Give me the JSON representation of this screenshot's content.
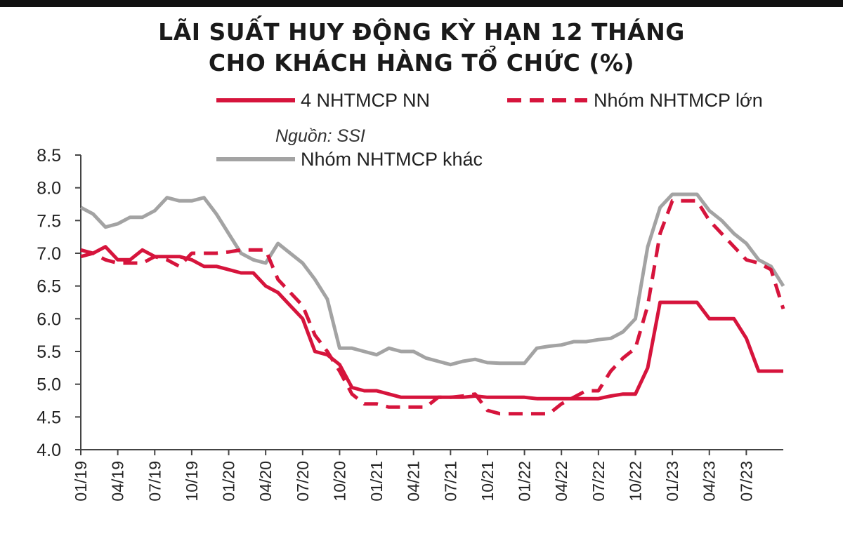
{
  "title_line1": "LÃI SUẤT HUY ĐỘNG KỲ HẠN 12 THÁNG",
  "title_line2": "CHO KHÁCH HÀNG TỔ CHỨC (%)",
  "source": "Nguồn: SSI",
  "colors": {
    "red": "#d6143c",
    "gray": "#a3a3a3",
    "axis": "#444444"
  },
  "chart_data": {
    "type": "line",
    "title": "LÃI SUẤT HUY ĐỘNG KỲ HẠN 12 THÁNG CHO KHÁCH HÀNG TỔ CHỨC (%)",
    "x_unit": "month",
    "x_start": "01/19",
    "x_end": "10/23",
    "xticks": [
      "01/19",
      "04/19",
      "07/19",
      "10/19",
      "01/20",
      "04/20",
      "07/20",
      "10/20",
      "01/21",
      "04/21",
      "07/21",
      "10/21",
      "01/22",
      "04/22",
      "07/22",
      "10/22",
      "01/23",
      "04/23",
      "07/23"
    ],
    "ylim": [
      4.0,
      8.5
    ],
    "yticks": [
      "8.5",
      "8.0",
      "7.5",
      "7.0",
      "6.5",
      "6.0",
      "5.5",
      "5.0",
      "4.5",
      "4.0"
    ],
    "legend_position": "top",
    "series": [
      {
        "name": "4 NHTMCP NN",
        "style": "solid",
        "color": "#d6143c",
        "points": [
          [
            "01/19",
            6.95
          ],
          [
            "02/19",
            7.0
          ],
          [
            "03/19",
            7.1
          ],
          [
            "04/19",
            6.9
          ],
          [
            "05/19",
            6.9
          ],
          [
            "06/19",
            7.05
          ],
          [
            "07/19",
            6.95
          ],
          [
            "08/19",
            6.95
          ],
          [
            "09/19",
            6.95
          ],
          [
            "10/19",
            6.9
          ],
          [
            "11/19",
            6.8
          ],
          [
            "12/19",
            6.8
          ],
          [
            "01/20",
            6.75
          ],
          [
            "02/20",
            6.7
          ],
          [
            "03/20",
            6.7
          ],
          [
            "04/20",
            6.5
          ],
          [
            "05/20",
            6.4
          ],
          [
            "06/20",
            6.2
          ],
          [
            "07/20",
            6.0
          ],
          [
            "08/20",
            5.5
          ],
          [
            "09/20",
            5.45
          ],
          [
            "10/20",
            5.3
          ],
          [
            "11/20",
            4.95
          ],
          [
            "12/20",
            4.9
          ],
          [
            "01/21",
            4.9
          ],
          [
            "02/21",
            4.85
          ],
          [
            "03/21",
            4.8
          ],
          [
            "04/21",
            4.8
          ],
          [
            "05/21",
            4.8
          ],
          [
            "06/21",
            4.8
          ],
          [
            "07/21",
            4.8
          ],
          [
            "08/21",
            4.8
          ],
          [
            "09/21",
            4.82
          ],
          [
            "10/21",
            4.8
          ],
          [
            "11/21",
            4.8
          ],
          [
            "12/21",
            4.8
          ],
          [
            "01/22",
            4.8
          ],
          [
            "02/22",
            4.78
          ],
          [
            "03/22",
            4.78
          ],
          [
            "04/22",
            4.78
          ],
          [
            "05/22",
            4.78
          ],
          [
            "06/22",
            4.78
          ],
          [
            "07/22",
            4.78
          ],
          [
            "08/22",
            4.82
          ],
          [
            "09/22",
            4.85
          ],
          [
            "10/22",
            4.85
          ],
          [
            "11/22",
            5.25
          ],
          [
            "12/22",
            6.25
          ],
          [
            "01/23",
            6.25
          ],
          [
            "02/23",
            6.25
          ],
          [
            "03/23",
            6.25
          ],
          [
            "04/23",
            6.0
          ],
          [
            "05/23",
            6.0
          ],
          [
            "06/23",
            6.0
          ],
          [
            "07/23",
            5.7
          ],
          [
            "08/23",
            5.2
          ],
          [
            "09/23",
            5.2
          ],
          [
            "10/23",
            5.2
          ]
        ]
      },
      {
        "name": "Nhóm NHTMCP lớn",
        "style": "dashed",
        "color": "#d6143c",
        "points": [
          [
            "01/19",
            7.05
          ],
          [
            "02/19",
            7.0
          ],
          [
            "03/19",
            6.9
          ],
          [
            "04/19",
            6.85
          ],
          [
            "05/19",
            6.85
          ],
          [
            "06/19",
            6.85
          ],
          [
            "07/19",
            6.95
          ],
          [
            "08/19",
            6.9
          ],
          [
            "09/19",
            6.8
          ],
          [
            "10/19",
            7.0
          ],
          [
            "11/19",
            7.0
          ],
          [
            "12/19",
            7.0
          ],
          [
            "01/20",
            7.02
          ],
          [
            "02/20",
            7.05
          ],
          [
            "03/20",
            7.05
          ],
          [
            "04/20",
            7.05
          ],
          [
            "05/20",
            6.6
          ],
          [
            "06/20",
            6.4
          ],
          [
            "07/20",
            6.2
          ],
          [
            "08/20",
            5.75
          ],
          [
            "09/20",
            5.5
          ],
          [
            "10/20",
            5.2
          ],
          [
            "11/20",
            4.85
          ],
          [
            "12/20",
            4.7
          ],
          [
            "01/21",
            4.7
          ],
          [
            "02/21",
            4.65
          ],
          [
            "03/21",
            4.65
          ],
          [
            "04/21",
            4.65
          ],
          [
            "05/21",
            4.65
          ],
          [
            "06/21",
            4.8
          ],
          [
            "07/21",
            4.8
          ],
          [
            "08/21",
            4.82
          ],
          [
            "09/21",
            4.85
          ],
          [
            "10/21",
            4.6
          ],
          [
            "11/21",
            4.55
          ],
          [
            "12/21",
            4.55
          ],
          [
            "01/22",
            4.55
          ],
          [
            "02/22",
            4.55
          ],
          [
            "03/22",
            4.55
          ],
          [
            "04/22",
            4.7
          ],
          [
            "05/22",
            4.8
          ],
          [
            "06/22",
            4.9
          ],
          [
            "07/22",
            4.9
          ],
          [
            "08/22",
            5.2
          ],
          [
            "09/22",
            5.4
          ],
          [
            "10/22",
            5.55
          ],
          [
            "11/22",
            6.2
          ],
          [
            "12/22",
            7.3
          ],
          [
            "01/23",
            7.8
          ],
          [
            "02/23",
            7.8
          ],
          [
            "03/23",
            7.8
          ],
          [
            "04/23",
            7.5
          ],
          [
            "05/23",
            7.3
          ],
          [
            "06/23",
            7.1
          ],
          [
            "07/23",
            6.9
          ],
          [
            "08/23",
            6.85
          ],
          [
            "09/23",
            6.75
          ],
          [
            "10/23",
            6.15
          ]
        ]
      },
      {
        "name": "Nhóm NHTMCP khác",
        "style": "solid",
        "color": "#a3a3a3",
        "points": [
          [
            "01/19",
            7.7
          ],
          [
            "02/19",
            7.6
          ],
          [
            "03/19",
            7.4
          ],
          [
            "04/19",
            7.45
          ],
          [
            "05/19",
            7.55
          ],
          [
            "06/19",
            7.55
          ],
          [
            "07/19",
            7.65
          ],
          [
            "08/19",
            7.85
          ],
          [
            "09/19",
            7.8
          ],
          [
            "10/19",
            7.8
          ],
          [
            "11/19",
            7.85
          ],
          [
            "12/19",
            7.6
          ],
          [
            "01/20",
            7.3
          ],
          [
            "02/20",
            7.0
          ],
          [
            "03/20",
            6.9
          ],
          [
            "04/20",
            6.85
          ],
          [
            "05/20",
            7.15
          ],
          [
            "06/20",
            7.0
          ],
          [
            "07/20",
            6.85
          ],
          [
            "08/20",
            6.6
          ],
          [
            "09/20",
            6.3
          ],
          [
            "10/20",
            5.55
          ],
          [
            "11/20",
            5.55
          ],
          [
            "12/20",
            5.5
          ],
          [
            "01/21",
            5.45
          ],
          [
            "02/21",
            5.55
          ],
          [
            "03/21",
            5.5
          ],
          [
            "04/21",
            5.5
          ],
          [
            "05/21",
            5.4
          ],
          [
            "06/21",
            5.35
          ],
          [
            "07/21",
            5.3
          ],
          [
            "08/21",
            5.35
          ],
          [
            "09/21",
            5.38
          ],
          [
            "10/21",
            5.33
          ],
          [
            "11/21",
            5.32
          ],
          [
            "12/21",
            5.32
          ],
          [
            "01/22",
            5.32
          ],
          [
            "02/22",
            5.55
          ],
          [
            "03/22",
            5.58
          ],
          [
            "04/22",
            5.6
          ],
          [
            "05/22",
            5.65
          ],
          [
            "06/22",
            5.65
          ],
          [
            "07/22",
            5.68
          ],
          [
            "08/22",
            5.7
          ],
          [
            "09/22",
            5.8
          ],
          [
            "10/22",
            6.0
          ],
          [
            "11/22",
            7.1
          ],
          [
            "12/22",
            7.7
          ],
          [
            "01/23",
            7.9
          ],
          [
            "02/23",
            7.9
          ],
          [
            "03/23",
            7.9
          ],
          [
            "04/23",
            7.65
          ],
          [
            "05/23",
            7.5
          ],
          [
            "06/23",
            7.3
          ],
          [
            "07/23",
            7.15
          ],
          [
            "08/23",
            6.9
          ],
          [
            "09/23",
            6.8
          ],
          [
            "10/23",
            6.5
          ]
        ]
      }
    ]
  }
}
